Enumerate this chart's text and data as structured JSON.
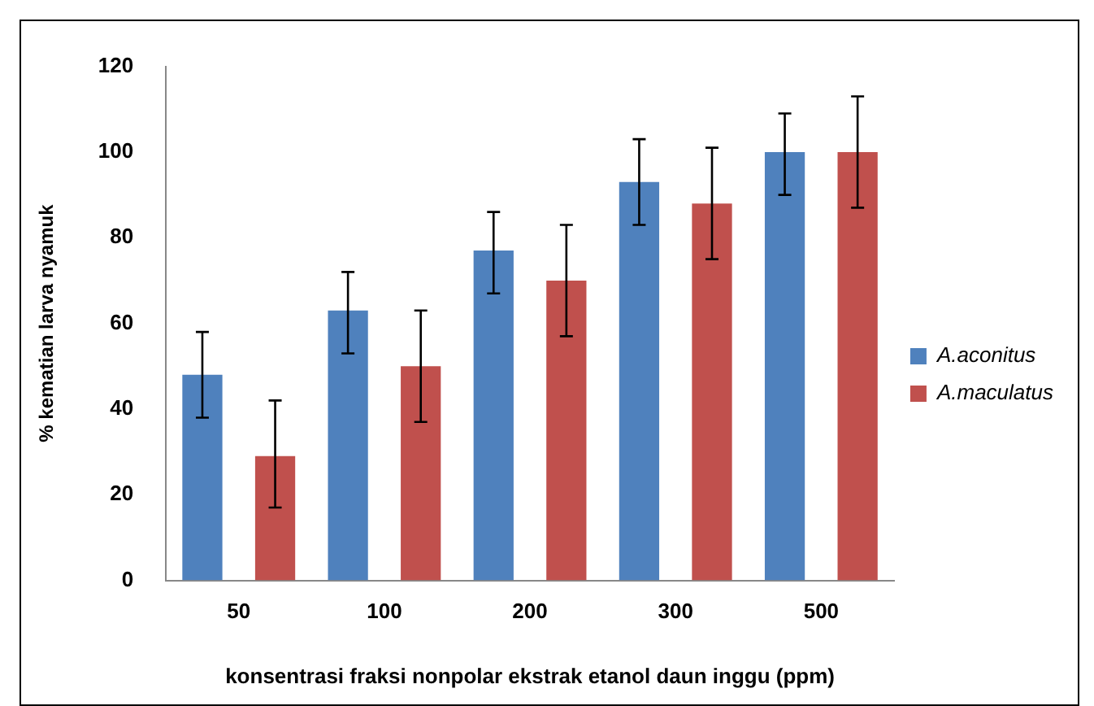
{
  "chart_data": {
    "type": "bar",
    "xlabel": "konsentrasi fraksi nonpolar ekstrak etanol daun inggu (ppm)",
    "ylabel": "% kematian larva nyamuk",
    "categories": [
      "50",
      "100",
      "200",
      "300",
      "500"
    ],
    "series": [
      {
        "name": "A.aconitus",
        "color": "#4f81bd",
        "values": [
          48,
          63,
          77,
          93,
          100
        ],
        "errors": [
          [
            38,
            58
          ],
          [
            53,
            72
          ],
          [
            67,
            86
          ],
          [
            83,
            103
          ],
          [
            90,
            109
          ]
        ]
      },
      {
        "name": "A.maculatus",
        "color": "#c0504d",
        "values": [
          29,
          50,
          70,
          88,
          100
        ],
        "errors": [
          [
            17,
            42
          ],
          [
            37,
            63
          ],
          [
            57,
            83
          ],
          [
            75,
            101
          ],
          [
            87,
            113
          ]
        ]
      }
    ],
    "ylim": [
      0,
      120
    ],
    "yticks": [
      0,
      20,
      40,
      60,
      80,
      100,
      120
    ],
    "grid": false,
    "legend": "right"
  }
}
